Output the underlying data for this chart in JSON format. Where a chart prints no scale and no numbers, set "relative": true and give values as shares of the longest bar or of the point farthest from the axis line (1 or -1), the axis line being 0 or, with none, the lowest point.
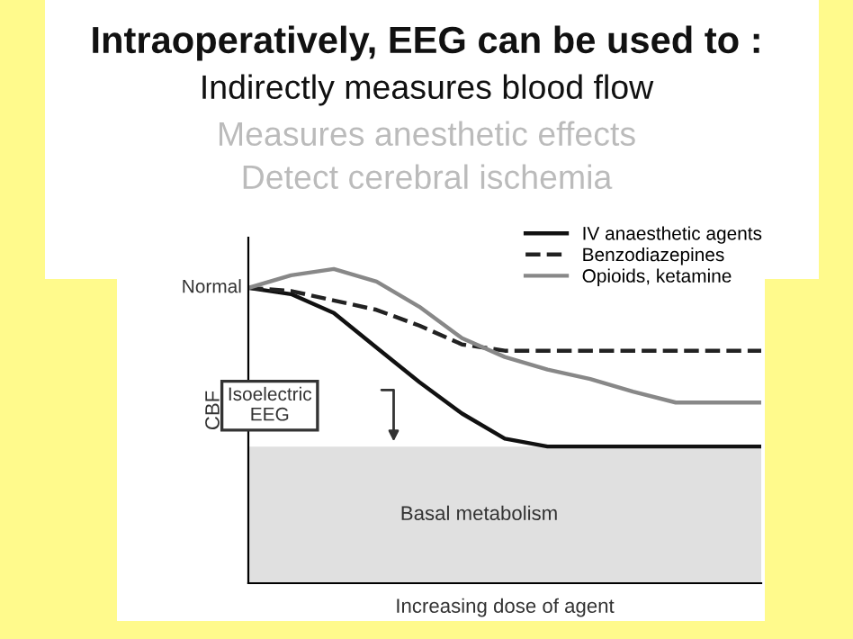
{
  "chart_data": {
    "type": "line",
    "relative": true,
    "title": "Intraoperatively, EEG can be used to :",
    "subtitle": "Indirectly measures blood flow",
    "xlabel": "Increasing dose of agent",
    "ylabel": "CBF",
    "categories": [
      null,
      null,
      null,
      null,
      null,
      null,
      null,
      null,
      null,
      null,
      null,
      null,
      null
    ],
    "series": [
      {
        "name": "IV anaesthetic agents",
        "color": "#111111",
        "line_style": "solid",
        "values": [
          0.94,
          0.92,
          0.86,
          0.75,
          0.64,
          0.54,
          0.46,
          0.435,
          0.435,
          0.435,
          0.435,
          0.435,
          0.435
        ]
      },
      {
        "name": "Benzodiazepines",
        "color": "#222222",
        "line_style": "dashed",
        "values": [
          0.94,
          0.93,
          0.9,
          0.87,
          0.82,
          0.76,
          0.74,
          0.74,
          0.74,
          0.74,
          0.74,
          0.74,
          0.74
        ]
      },
      {
        "name": "Opioids, ketamine",
        "color": "#888888",
        "line_style": "solid",
        "values": [
          0.94,
          0.98,
          1.0,
          0.96,
          0.88,
          0.78,
          0.72,
          0.68,
          0.65,
          0.61,
          0.575,
          0.575,
          0.575
        ]
      }
    ],
    "bands": [
      {
        "axis": "y",
        "from": 0,
        "to": 0.435,
        "label": "Basal metabolism",
        "color": "#e0e0e0"
      }
    ],
    "annotations": [
      "Measures anesthetic effects",
      "Detect cerebral ischemia",
      "Normal",
      "Isoelectric\nEEG"
    ],
    "legend": "top right"
  }
}
